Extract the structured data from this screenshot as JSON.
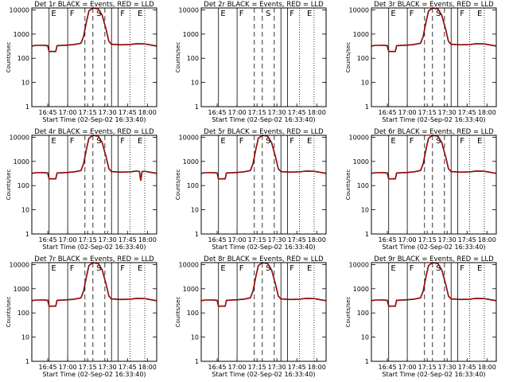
{
  "figure": {
    "colors": {
      "events": "#000000",
      "lld": "#dd0000",
      "background": "#ffffff"
    }
  },
  "chart_data": [
    {
      "type": "line",
      "title": "Det 1r  BLACK = Events, RED = LLD",
      "xlabel": "Start Time (02-Sep-02 16:33:40)",
      "ylabel": "Counts/sec",
      "x_ticks": [
        "16:45",
        "17:00",
        "17:15",
        "17:30",
        "17:45",
        "18:00"
      ],
      "y_ticks": [
        "1",
        "10",
        "100",
        "1000",
        "10000"
      ],
      "ylim": [
        1,
        12000
      ],
      "y_scale": "log",
      "letters": [
        "E",
        "F",
        "S",
        "F",
        "E"
      ],
      "has_data": true,
      "series": [
        {
          "name": "Events",
          "color": "#000000"
        },
        {
          "name": "LLD",
          "color": "#dd0000"
        }
      ]
    },
    {
      "type": "line",
      "title": "Det 2r  BLACK = Events, RED = LLD",
      "xlabel": "Start Time (02-Sep-02 16:33:40)",
      "ylabel": "Counts/sec",
      "x_ticks": [
        "16:45",
        "17:00",
        "17:15",
        "17:30",
        "17:45",
        "18:00"
      ],
      "y_ticks": [
        "1",
        "10",
        "100",
        "1000",
        "10000"
      ],
      "ylim": [
        1,
        12000
      ],
      "y_scale": "log",
      "letters": [
        "E",
        "F",
        "S",
        "F",
        "E"
      ],
      "has_data": false,
      "series": []
    },
    {
      "type": "line",
      "title": "Det 3r  BLACK = Events, RED = LLD",
      "xlabel": "Start Time (02-Sep-02 16:33:40)",
      "ylabel": "Counts/sec",
      "x_ticks": [
        "16:45",
        "17:00",
        "17:15",
        "17:30",
        "17:45",
        "18:00"
      ],
      "y_ticks": [
        "1",
        "10",
        "100",
        "1000",
        "10000"
      ],
      "ylim": [
        1,
        12000
      ],
      "y_scale": "log",
      "letters": [
        "E",
        "F",
        "S",
        "F",
        "E"
      ],
      "has_data": true,
      "series": [
        {
          "name": "Events",
          "color": "#000000"
        },
        {
          "name": "LLD",
          "color": "#dd0000"
        }
      ]
    },
    {
      "type": "line",
      "title": "Det 4r  BLACK = Events, RED = LLD",
      "xlabel": "Start Time (02-Sep-02 16:33:40)",
      "ylabel": "Counts/sec",
      "x_ticks": [
        "16:45",
        "17:00",
        "17:15",
        "17:30",
        "17:45",
        "18:00"
      ],
      "y_ticks": [
        "1",
        "10",
        "100",
        "1000",
        "10000"
      ],
      "ylim": [
        1,
        12000
      ],
      "y_scale": "log",
      "letters": [
        "E",
        "F",
        "S",
        "F",
        "E"
      ],
      "has_data": true,
      "dip_at": "17:55",
      "series": [
        {
          "name": "Events",
          "color": "#000000"
        },
        {
          "name": "LLD",
          "color": "#dd0000"
        }
      ]
    },
    {
      "type": "line",
      "title": "Det 5r  BLACK = Events, RED = LLD",
      "xlabel": "Start Time (02-Sep-02 16:33:40)",
      "ylabel": "Counts/sec",
      "x_ticks": [
        "16:45",
        "17:00",
        "17:15",
        "17:30",
        "17:45",
        "18:00"
      ],
      "y_ticks": [
        "1",
        "10",
        "100",
        "1000",
        "10000"
      ],
      "ylim": [
        1,
        12000
      ],
      "y_scale": "log",
      "letters": [
        "E",
        "F",
        "S",
        "F",
        "E"
      ],
      "has_data": true,
      "series": [
        {
          "name": "Events",
          "color": "#000000"
        },
        {
          "name": "LLD",
          "color": "#dd0000"
        }
      ]
    },
    {
      "type": "line",
      "title": "Det 6r  BLACK = Events, RED = LLD",
      "xlabel": "Start Time (02-Sep-02 16:33:40)",
      "ylabel": "Counts/sec",
      "x_ticks": [
        "16:45",
        "17:00",
        "17:15",
        "17:30",
        "17:45",
        "18:00"
      ],
      "y_ticks": [
        "1",
        "10",
        "100",
        "1000",
        "10000"
      ],
      "ylim": [
        1,
        12000
      ],
      "y_scale": "log",
      "letters": [
        "E",
        "F",
        "S",
        "F",
        "E"
      ],
      "has_data": true,
      "series": [
        {
          "name": "Events",
          "color": "#000000"
        },
        {
          "name": "LLD",
          "color": "#dd0000"
        }
      ]
    },
    {
      "type": "line",
      "title": "Det 7r  BLACK = Events, RED = LLD",
      "xlabel": "Start Time (02-Sep-02 16:33:40)",
      "ylabel": "Counts/sec",
      "x_ticks": [
        "16:45",
        "17:00",
        "17:15",
        "17:30",
        "17:45",
        "18:00"
      ],
      "y_ticks": [
        "1",
        "10",
        "100",
        "1000",
        "10000"
      ],
      "ylim": [
        1,
        12000
      ],
      "y_scale": "log",
      "letters": [
        "E",
        "F",
        "S",
        "F",
        "E"
      ],
      "has_data": true,
      "series": [
        {
          "name": "Events",
          "color": "#000000"
        },
        {
          "name": "LLD",
          "color": "#dd0000"
        }
      ]
    },
    {
      "type": "line",
      "title": "Det 8r  BLACK = Events, RED = LLD",
      "xlabel": "Start Time (02-Sep-02 16:33:40)",
      "ylabel": "Counts/sec",
      "x_ticks": [
        "16:45",
        "17:00",
        "17:15",
        "17:30",
        "17:45",
        "18:00"
      ],
      "y_ticks": [
        "1",
        "10",
        "100",
        "1000",
        "10000"
      ],
      "ylim": [
        1,
        12000
      ],
      "y_scale": "log",
      "letters": [
        "E",
        "F",
        "S",
        "F",
        "E"
      ],
      "has_data": true,
      "series": [
        {
          "name": "Events",
          "color": "#000000"
        },
        {
          "name": "LLD",
          "color": "#dd0000"
        }
      ]
    },
    {
      "type": "line",
      "title": "Det 9r  BLACK = Events, RED = LLD",
      "xlabel": "Start Time (02-Sep-02 16:33:40)",
      "ylabel": "Counts/sec",
      "x_ticks": [
        "16:45",
        "17:00",
        "17:15",
        "17:30",
        "17:45",
        "18:00"
      ],
      "y_ticks": [
        "1",
        "10",
        "100",
        "1000",
        "10000"
      ],
      "ylim": [
        1,
        12000
      ],
      "y_scale": "log",
      "letters": [
        "E",
        "F",
        "S",
        "F",
        "E"
      ],
      "has_data": true,
      "series": [
        {
          "name": "Events",
          "color": "#000000"
        },
        {
          "name": "LLD",
          "color": "#dd0000"
        }
      ]
    }
  ]
}
